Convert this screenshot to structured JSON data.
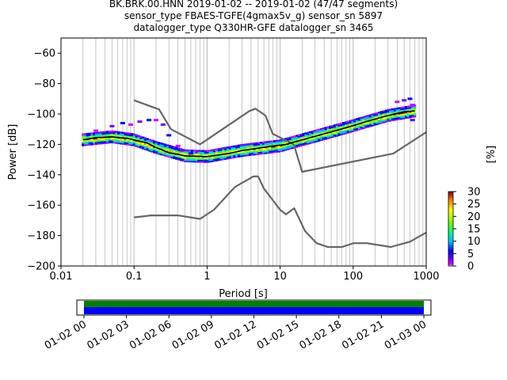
{
  "title_lines": [
    "BK.BRK.00.HNN   2019-01-02 -- 2019-01-02  (47/47 segments)",
    "sensor_type FBAES-TGFE(4gmax5v_g) sensor_sn 5897",
    "datalogger_type Q330HR-GFE datalogger_sn 3465"
  ],
  "chart_data": [
    {
      "type": "heatmap",
      "xlabel": "Period [s]",
      "ylabel": "Power [dB]",
      "x_scale": "log",
      "xlim": [
        0.01,
        1000
      ],
      "ylim": [
        -200,
        -50
      ],
      "xticks": [
        {
          "v": 0.01,
          "label": "0.01"
        },
        {
          "v": 0.1,
          "label": "0.1"
        },
        {
          "v": 1,
          "label": "1"
        },
        {
          "v": 10,
          "label": "10"
        },
        {
          "v": 100,
          "label": "100"
        },
        {
          "v": 1000,
          "label": "1000"
        }
      ],
      "yticks": [
        {
          "v": -60,
          "label": "−60"
        },
        {
          "v": -80,
          "label": "−80"
        },
        {
          "v": -100,
          "label": "−100"
        },
        {
          "v": -120,
          "label": "−120"
        },
        {
          "v": -140,
          "label": "−140"
        },
        {
          "v": -160,
          "label": "−160"
        },
        {
          "v": -180,
          "label": "−180"
        },
        {
          "v": -200,
          "label": "−200"
        }
      ],
      "grid": "vertical-minor",
      "colorbar": {
        "label": "[%]",
        "range": [
          0,
          30
        ],
        "ticks": [
          {
            "v": 0,
            "label": "0"
          },
          {
            "v": 5,
            "label": "5"
          },
          {
            "v": 10,
            "label": "10"
          },
          {
            "v": 15,
            "label": "15"
          },
          {
            "v": 20,
            "label": "20"
          },
          {
            "v": 25,
            "label": "25"
          },
          {
            "v": 30,
            "label": "30"
          }
        ]
      },
      "series": [
        {
          "kind": "noise-model-high",
          "color": "#666666",
          "points": [
            [
              0.1,
              -91
            ],
            [
              0.22,
              -97
            ],
            [
              0.32,
              -110
            ],
            [
              0.8,
              -120
            ],
            [
              3.8,
              -98
            ],
            [
              4.6,
              -96.5
            ],
            [
              6.3,
              -101
            ],
            [
              7.9,
              -113
            ],
            [
              15.4,
              -120
            ],
            [
              20,
              -138
            ],
            [
              354.8,
              -126
            ],
            [
              1000,
              -112
            ]
          ]
        },
        {
          "kind": "noise-model-low",
          "color": "#666666",
          "points": [
            [
              0.1,
              -168
            ],
            [
              0.17,
              -166.7
            ],
            [
              0.4,
              -166.7
            ],
            [
              0.8,
              -169
            ],
            [
              1.24,
              -163
            ],
            [
              2.4,
              -148
            ],
            [
              4.3,
              -141.1
            ],
            [
              5,
              -141
            ],
            [
              6,
              -149
            ],
            [
              10,
              -163
            ],
            [
              12,
              -166
            ],
            [
              15.6,
              -162
            ],
            [
              21.9,
              -177
            ],
            [
              31.6,
              -185
            ],
            [
              45,
              -187.5
            ],
            [
              70,
              -187.5
            ],
            [
              101,
              -185
            ],
            [
              154,
              -185
            ],
            [
              328,
              -187.5
            ],
            [
              600,
              -184
            ],
            [
              1000,
              -178
            ]
          ]
        },
        {
          "kind": "mode",
          "color": "#000000",
          "points": [
            [
              0.02,
              -117
            ],
            [
              0.03,
              -115.5
            ],
            [
              0.05,
              -115
            ],
            [
              0.08,
              -116
            ],
            [
              0.1,
              -117
            ],
            [
              0.15,
              -119
            ],
            [
              0.2,
              -122
            ],
            [
              0.3,
              -125.5
            ],
            [
              0.5,
              -127.5
            ],
            [
              1,
              -128
            ],
            [
              2,
              -126
            ],
            [
              3,
              -124
            ],
            [
              5,
              -122.5
            ],
            [
              8,
              -121
            ],
            [
              12,
              -120
            ],
            [
              20,
              -117
            ],
            [
              40,
              -113
            ],
            [
              80,
              -109
            ],
            [
              150,
              -105
            ],
            [
              300,
              -101
            ],
            [
              500,
              -98.5
            ],
            [
              700,
              -98
            ]
          ]
        }
      ],
      "density_band": {
        "center": [
          [
            0.02,
            -117
          ],
          [
            0.05,
            -115
          ],
          [
            0.1,
            -117
          ],
          [
            0.2,
            -122
          ],
          [
            0.5,
            -127.5
          ],
          [
            1,
            -128
          ],
          [
            3,
            -124
          ],
          [
            10,
            -121
          ],
          [
            20,
            -117
          ],
          [
            80,
            -109
          ],
          [
            300,
            -101
          ],
          [
            700,
            -98
          ]
        ],
        "outliers": [
          [
            0.03,
            -111
          ],
          [
            0.05,
            -108
          ],
          [
            0.07,
            -106
          ],
          [
            0.09,
            -107
          ],
          [
            0.12,
            -105
          ],
          [
            0.16,
            -104
          ],
          [
            0.2,
            -104
          ],
          [
            0.25,
            -107
          ],
          [
            0.3,
            -114
          ],
          [
            0.4,
            -121
          ],
          [
            0.45,
            -124
          ],
          [
            0.6,
            -126
          ],
          [
            400,
            -92
          ],
          [
            500,
            -91
          ],
          [
            600,
            -90
          ],
          [
            650,
            -94
          ],
          [
            650,
            -104
          ]
        ]
      }
    },
    {
      "type": "timeline",
      "xlabel": "",
      "tick_labels": [
        "01-02 00",
        "01-02 03",
        "01-02 06",
        "01-02 09",
        "01-02 12",
        "01-02 15",
        "01-02 18",
        "01-02 21",
        "01-03 00"
      ],
      "range_hours": [
        -0.5,
        24.5
      ],
      "coverage": [
        {
          "start": 0,
          "end": 24
        }
      ],
      "colors": {
        "upper": "#008000",
        "lower": "#0000ff"
      }
    }
  ]
}
